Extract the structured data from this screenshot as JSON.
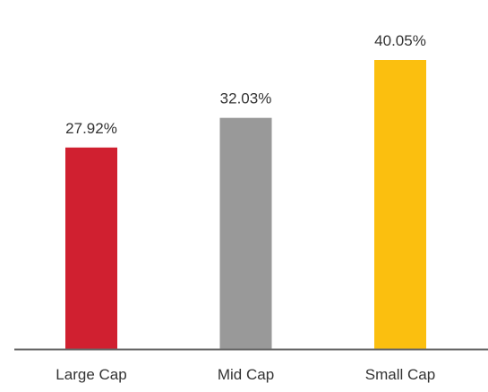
{
  "chart_data": {
    "type": "bar",
    "title": "",
    "xlabel": "",
    "ylabel": "",
    "categories": [
      "Large Cap",
      "Mid Cap",
      "Small Cap"
    ],
    "values": [
      27.92,
      32.03,
      40.05
    ],
    "value_labels": [
      "27.92%",
      "32.03%",
      "40.05%"
    ],
    "colors": [
      "#d02030",
      "#999999",
      "#fbbf0f"
    ],
    "axis_color": "#666666",
    "ylim": [
      0,
      40.05
    ],
    "grid": false,
    "legend": "none"
  }
}
